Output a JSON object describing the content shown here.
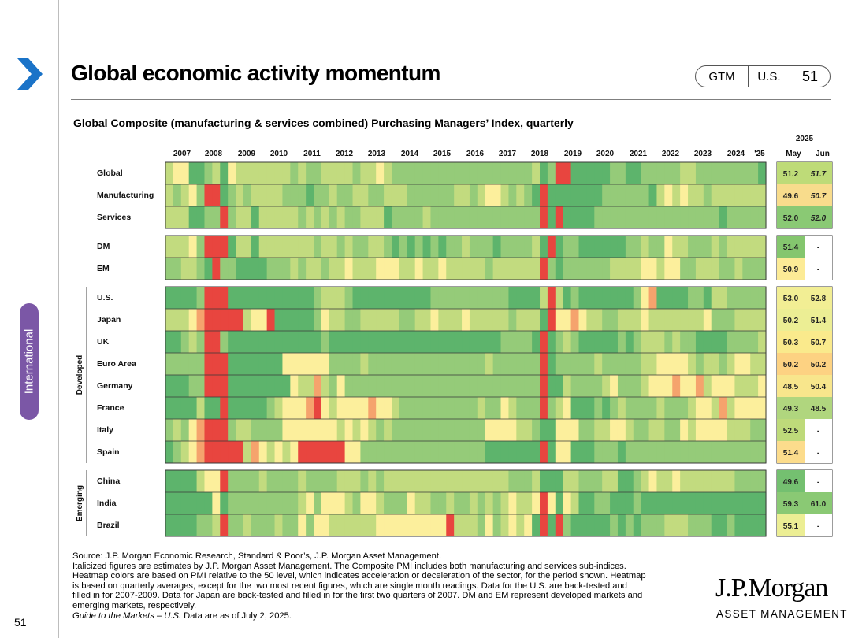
{
  "header": {
    "title": "Global economic activity momentum",
    "tag_left": "GTM",
    "tag_mid": "U.S.",
    "tag_page": "51"
  },
  "side_tab": "International",
  "page_number": "51",
  "chart_data": {
    "type": "heatmap",
    "title": "Global Composite (manufacturing & services combined) Purchasing Managers’ Index, quarterly",
    "year_labels": [
      "2007",
      "2008",
      "2009",
      "2010",
      "2011",
      "2012",
      "2013",
      "2014",
      "2015",
      "2016",
      "2017",
      "2018",
      "2019",
      "2020",
      "2021",
      "2022",
      "2023",
      "2024",
      "'25"
    ],
    "latest_year": "2025",
    "latest_columns": [
      "May",
      "Jun"
    ],
    "group_labels": [
      "Developed",
      "Emerging"
    ],
    "color_scale": {
      "center": 50,
      "low_color": "#e8453f",
      "mid_color": "#fcef9c",
      "high_color": "#5db46c"
    },
    "rows": [
      {
        "name": "Global",
        "group": 0,
        "may": "51.2",
        "jun": "51.7",
        "jun_italic": true,
        "levels": "34411231433333332322333323343222222222222222222312001111122112222233222222221"
      },
      {
        "name": "Manufacturing",
        "group": 0,
        "may": "49.6",
        "jun": "50.7",
        "jun_italic": true,
        "levels": "32342001232333322212232233223332222223323443232101111111222222134343323333333"
      },
      {
        "name": "Services",
        "group": 0,
        "may": "52.0",
        "jun": "52.0",
        "jun_italic": true,
        "levels": "33311220233133333232323223331222232222222222222201011112222222222222222122222"
      },
      {
        "name": "DM",
        "group": 1,
        "may": "51.4",
        "jun": "-",
        "levels": "33342000133133333332332322332121212122322212222310122111111223224332223233333"
      },
      {
        "name": "EM",
        "group": 1,
        "may": "50.9",
        "jun": "-",
        "levels": "22332102211112223233233433344433433433333233333302122222233334434422333223222"
      },
      {
        "name": "U.S.",
        "group": 2,
        "may": "53.0",
        "jun": "52.8",
        "levels": "11112000111111111112333211111111112222222222111130312111111124511112213322222"
      },
      {
        "name": "Japan",
        "group": 2,
        "may": "50.2",
        "jun": "51.4",
        "levels": "33345000003440111112433223333322334333433333233310445433223334333333342223333"
      },
      {
        "name": "UK",
        "group": 2,
        "may": "50.3",
        "jun": "50.7",
        "levels": "11232002111111111111211111111111111111111112222101232111112123332322111122223"
      },
      {
        "name": "Euro Area",
        "group": 2,
        "may": "50.2",
        "jun": "50.2",
        "levels": "22222000111111144444422223222222222222222322222201222223222223344443233234433"
      },
      {
        "name": "Germany",
        "group": 2,
        "may": "48.5",
        "jun": "50.4",
        "levels": "11122000111111114335324222222222222222222222222201132222342223444544534443334"
      },
      {
        "name": "France",
        "group": 2,
        "may": "49.3",
        "jun": "48.5",
        "levels": "11113110111112344450434444544322222222223224322202341112123222232223443534444"
      },
      {
        "name": "Italy",
        "group": 2,
        "may": "52.5",
        "jun": "-",
        "levels": "23245000233222244444443434323222222222222444433211444223344322332243444433322"
      },
      {
        "name": "Spain",
        "group": 2,
        "may": "51.4",
        "jun": "-",
        "levels": "12345000003543434000000442222222222222222111111101441112221222222222222222222"
      },
      {
        "name": "China",
        "group": 3,
        "may": "49.6",
        "jun": "-",
        "levels": "11113440222232222322223332323333333333333333222311133222331123433433333332222"
      },
      {
        "name": "India",
        "group": 3,
        "may": "59.3",
        "jun": "61.0",
        "levels": "11111141222222222342444324432224332232232323433404143112211121111111111111111"
      },
      {
        "name": "Brazil",
        "group": 3,
        "may": "55.1",
        "jun": "-",
        "levels": "11112230223222322424433333344444444403332423434101021111121212223332221121111"
      }
    ]
  },
  "footer": {
    "source": "Source: J.P. Morgan Economic Research, Standard & Poor’s, J.P. Morgan Asset Management.",
    "note1": "Italicized figures are estimates by J.P. Morgan Asset Management. The Composite PMI includes both manufacturing and services sub-indices.",
    "note2": "Heatmap colors are based on PMI relative to the 50 level, which indicates acceleration or deceleration of the sector, for the period shown. Heatmap",
    "note3": "is based on quarterly averages, except for the two most recent figures, which are single month readings. Data for the U.S. are back-tested and",
    "note4": "filled in for 2007-2009. Data for Japan are back-tested and filled in for the first two quarters of 2007. DM and EM represent developed markets and",
    "note5": "emerging markets, respectively.",
    "guide_italic": "Guide to the Markets – U.S.",
    "guide_rest": " Data are as of July 2, 2025."
  },
  "logo": {
    "name": "J.P.Morgan",
    "sub": "ASSET MANAGEMENT"
  }
}
